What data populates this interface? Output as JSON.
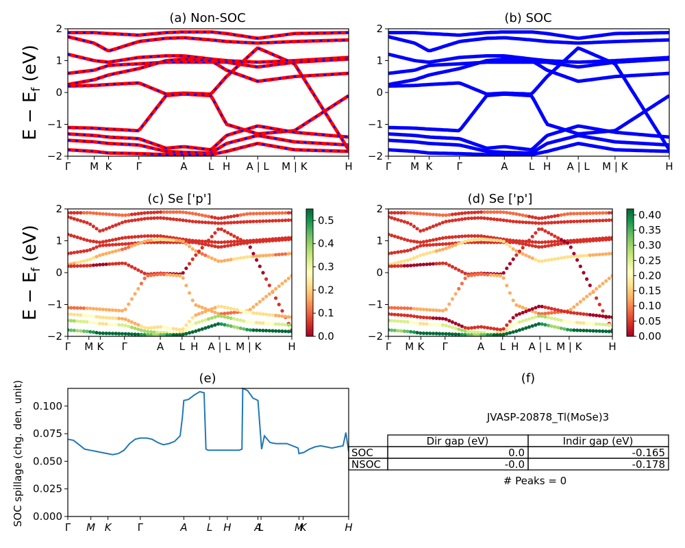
{
  "titles": {
    "a": "(a) Non-SOC",
    "b": "(b) SOC",
    "c": "(c)  Se ['p']",
    "d": "(d) Se ['p']",
    "e": "(e)",
    "f": "(f)"
  },
  "ylabel_energy": "E − E",
  "ylabel_energy_sub": "f",
  "ylabel_energy_unit": " (eV)",
  "colors": {
    "nonsoc_red": "#ff0000",
    "nonsoc_blue": "#0000ff",
    "soc_blue": "#0000ff",
    "spillage_line": "#1f77b4"
  },
  "chart_data": [
    {
      "id": "a",
      "type": "line",
      "title": "(a) Non-SOC",
      "ylabel": "E − Ef (eV)",
      "ylim": [
        -2,
        2
      ],
      "yticks": [
        "2",
        "1",
        "0",
        "−1",
        "−2"
      ],
      "kpath": [
        "Γ",
        "M",
        "K",
        "Γ",
        "A",
        "L",
        "H",
        "A | L",
        "M | K",
        "H"
      ],
      "kpos": [
        0,
        0.094,
        0.145,
        0.253,
        0.413,
        0.51,
        0.565,
        0.676,
        0.807,
        1.0
      ],
      "bands": [
        [
          1.88,
          1.88,
          1.85,
          1.8,
          1.88,
          1.9,
          1.9,
          1.85,
          1.7,
          1.85,
          1.88
        ],
        [
          1.75,
          1.55,
          1.3,
          1.6,
          1.7,
          1.72,
          1.65,
          1.6,
          1.55,
          1.6,
          1.65
        ],
        [
          1.2,
          1.0,
          0.95,
          1.1,
          1.15,
          1.15,
          1.05,
          1.0,
          0.95,
          1.0,
          1.1
        ],
        [
          0.6,
          0.7,
          0.85,
          0.9,
          0.95,
          0.95,
          0.95,
          0.95,
          0.8,
          0.95,
          1.05
        ],
        [
          0.25,
          0.4,
          0.55,
          0.75,
          1.0,
          1.05,
          1.0,
          0.7,
          0.35,
          0.5,
          0.6
        ],
        [
          0.2,
          0.22,
          0.25,
          0.3,
          -0.05,
          -0.02,
          -0.05,
          0.5,
          1.4,
          0.9,
          -1.8
        ],
        [
          -1.1,
          -1.12,
          -1.15,
          -1.2,
          -0.1,
          -0.05,
          -0.1,
          -1.0,
          -1.3,
          -1.2,
          -0.1
        ],
        [
          -1.3,
          -1.35,
          -1.4,
          -1.45,
          -1.75,
          -1.7,
          -1.8,
          -1.35,
          -1.05,
          -1.25,
          -1.4
        ],
        [
          -1.5,
          -1.55,
          -1.6,
          -1.65,
          -1.85,
          -1.88,
          -1.9,
          -1.6,
          -1.35,
          -1.55,
          -1.65
        ],
        [
          -1.8,
          -1.85,
          -1.9,
          -1.92,
          -1.95,
          -1.95,
          -1.95,
          -1.85,
          -1.6,
          -1.8,
          -1.85
        ]
      ]
    },
    {
      "id": "b",
      "type": "line",
      "title": "(b) SOC",
      "ylim": [
        -2,
        2
      ],
      "yticks": [
        "2",
        "1",
        "0",
        "−1",
        "−2"
      ],
      "kpath": [
        "Γ",
        "M",
        "K",
        "Γ",
        "A",
        "L",
        "H",
        "A | L",
        "M | K",
        "H"
      ],
      "kpos": [
        0,
        0.094,
        0.145,
        0.253,
        0.413,
        0.51,
        0.565,
        0.676,
        0.807,
        1.0
      ],
      "bands": [
        [
          1.88,
          1.88,
          1.85,
          1.8,
          1.88,
          1.9,
          1.9,
          1.85,
          1.7,
          1.85,
          1.88
        ],
        [
          1.75,
          1.55,
          1.3,
          1.6,
          1.7,
          1.72,
          1.65,
          1.6,
          1.55,
          1.6,
          1.65
        ],
        [
          1.2,
          1.0,
          0.95,
          1.1,
          1.15,
          1.15,
          1.05,
          1.0,
          0.95,
          1.0,
          1.1
        ],
        [
          0.6,
          0.7,
          0.85,
          0.9,
          0.95,
          0.95,
          0.95,
          0.95,
          0.8,
          0.95,
          1.05
        ],
        [
          0.25,
          0.4,
          0.55,
          0.75,
          1.0,
          1.05,
          1.0,
          0.7,
          0.35,
          0.5,
          0.6
        ],
        [
          0.2,
          0.22,
          0.25,
          0.3,
          -0.05,
          -0.02,
          -0.05,
          0.5,
          1.4,
          0.9,
          -1.8
        ],
        [
          -1.1,
          -1.12,
          -1.15,
          -1.2,
          -0.1,
          -0.05,
          -0.1,
          -1.0,
          -1.3,
          -1.2,
          -0.1
        ],
        [
          -1.3,
          -1.35,
          -1.4,
          -1.45,
          -1.75,
          -1.7,
          -1.8,
          -1.35,
          -1.05,
          -1.25,
          -1.4
        ],
        [
          -1.5,
          -1.55,
          -1.6,
          -1.65,
          -1.85,
          -1.88,
          -1.9,
          -1.6,
          -1.35,
          -1.55,
          -1.65
        ],
        [
          -1.8,
          -1.85,
          -1.9,
          -1.92,
          -1.95,
          -1.95,
          -1.95,
          -1.85,
          -1.6,
          -1.8,
          -1.85
        ]
      ]
    },
    {
      "id": "c",
      "type": "scatter",
      "title": "(c)  Se ['p']",
      "ylim": [
        -2,
        2
      ],
      "yticks": [
        "2",
        "1",
        "0",
        "−1",
        "−2"
      ],
      "kpath": [
        "Γ",
        "M",
        "K",
        "Γ",
        "A",
        "L",
        "H",
        "A | L",
        "M | K",
        "H"
      ],
      "kpos": [
        0,
        0.094,
        0.145,
        0.253,
        0.413,
        0.51,
        0.565,
        0.676,
        0.807,
        1.0
      ],
      "colorbar_range": [
        0.0,
        0.55
      ],
      "colorbar_ticks": [
        "0.5",
        "0.4",
        "0.3",
        "0.2",
        "0.1",
        "0.0"
      ],
      "bands": [
        [
          1.88,
          1.88,
          1.85,
          1.8,
          1.88,
          1.9,
          1.9,
          1.85,
          1.7,
          1.85,
          1.88
        ],
        [
          1.75,
          1.55,
          1.3,
          1.6,
          1.7,
          1.72,
          1.65,
          1.6,
          1.55,
          1.6,
          1.65
        ],
        [
          1.2,
          1.0,
          0.95,
          1.1,
          1.15,
          1.15,
          1.05,
          1.0,
          0.95,
          1.0,
          1.1
        ],
        [
          0.6,
          0.7,
          0.85,
          0.9,
          0.95,
          0.95,
          0.95,
          0.95,
          0.8,
          0.95,
          1.05
        ],
        [
          0.25,
          0.4,
          0.55,
          0.75,
          1.0,
          1.05,
          1.0,
          0.7,
          0.35,
          0.5,
          0.6
        ],
        [
          0.2,
          0.22,
          0.25,
          0.3,
          -0.05,
          -0.02,
          -0.05,
          0.5,
          1.4,
          0.9,
          -1.8
        ],
        [
          -1.1,
          -1.12,
          -1.15,
          -1.2,
          -0.1,
          -0.05,
          -0.1,
          -1.0,
          -1.3,
          -1.2,
          -0.1
        ],
        [
          -1.3,
          -1.35,
          -1.4,
          -1.45,
          -1.75,
          -1.7,
          -1.8,
          -1.35,
          -1.05,
          -1.25,
          -1.4
        ],
        [
          -1.5,
          -1.55,
          -1.6,
          -1.65,
          -1.85,
          -1.88,
          -1.9,
          -1.6,
          -1.35,
          -1.55,
          -1.65
        ],
        [
          -1.8,
          -1.85,
          -1.9,
          -1.92,
          -1.95,
          -1.95,
          -1.95,
          -1.85,
          -1.6,
          -1.8,
          -1.85
        ]
      ],
      "band_weights": [
        0.08,
        0.06,
        0.05,
        0.04,
        0.16,
        0.03,
        0.14,
        0.2,
        0.3,
        0.5
      ]
    },
    {
      "id": "d",
      "type": "scatter",
      "title": "(d) Se ['p']",
      "ylim": [
        -2,
        2
      ],
      "yticks": [
        "2",
        "1",
        "0",
        "−1",
        "−2"
      ],
      "kpath": [
        "Γ",
        "M",
        "K",
        "Γ",
        "A",
        "L",
        "H",
        "A | L",
        "M | K",
        "H"
      ],
      "kpos": [
        0,
        0.094,
        0.145,
        0.253,
        0.413,
        0.51,
        0.565,
        0.676,
        0.807,
        1.0
      ],
      "colorbar_range": [
        0.0,
        0.42
      ],
      "colorbar_ticks": [
        "0.40",
        "0.35",
        "0.30",
        "0.25",
        "0.20",
        "0.15",
        "0.10",
        "0.05",
        "0.00"
      ],
      "bands": [
        [
          1.88,
          1.88,
          1.85,
          1.8,
          1.88,
          1.9,
          1.9,
          1.85,
          1.7,
          1.85,
          1.88
        ],
        [
          1.75,
          1.55,
          1.3,
          1.6,
          1.7,
          1.72,
          1.65,
          1.6,
          1.55,
          1.6,
          1.65
        ],
        [
          1.2,
          1.0,
          0.95,
          1.1,
          1.15,
          1.15,
          1.05,
          1.0,
          0.95,
          1.0,
          1.1
        ],
        [
          0.6,
          0.7,
          0.85,
          0.9,
          0.95,
          0.95,
          0.95,
          0.95,
          0.8,
          0.95,
          1.05
        ],
        [
          0.25,
          0.4,
          0.55,
          0.75,
          1.0,
          1.05,
          1.0,
          0.7,
          0.35,
          0.5,
          0.6
        ],
        [
          0.2,
          0.22,
          0.25,
          0.3,
          -0.05,
          -0.02,
          -0.05,
          0.5,
          1.4,
          0.9,
          -1.8
        ],
        [
          -1.1,
          -1.12,
          -1.15,
          -1.2,
          -0.1,
          -0.05,
          -0.1,
          -1.0,
          -1.3,
          -1.2,
          -0.1
        ],
        [
          -1.3,
          -1.35,
          -1.4,
          -1.45,
          -1.75,
          -1.7,
          -1.8,
          -1.35,
          -1.05,
          -1.25,
          -1.4
        ],
        [
          -1.5,
          -1.55,
          -1.6,
          -1.65,
          -1.85,
          -1.88,
          -1.9,
          -1.6,
          -1.35,
          -1.55,
          -1.65
        ],
        [
          -1.8,
          -1.85,
          -1.9,
          -1.92,
          -1.95,
          -1.95,
          -1.95,
          -1.85,
          -1.6,
          -1.8,
          -1.85
        ]
      ],
      "band_weights": [
        0.06,
        0.05,
        0.04,
        0.03,
        0.15,
        0.02,
        0.1,
        0.02,
        0.22,
        0.38
      ]
    },
    {
      "id": "e",
      "type": "line",
      "title": "(e)",
      "ylabel": "SOC spillage (chg. den. unit)",
      "ylim": [
        0,
        0.116
      ],
      "yticks": [
        0.0,
        0.025,
        0.05,
        0.075,
        0.1
      ],
      "ytick_labels": [
        "0.000",
        "0.025",
        "0.050",
        "0.075",
        "0.100"
      ],
      "xtick_labels": [
        "Γ",
        "M",
        "K",
        "Γ",
        "A",
        "L",
        "H",
        "A",
        "L",
        "M",
        "K",
        "H"
      ],
      "xtick_pos": [
        0,
        0.082,
        0.143,
        0.258,
        0.413,
        0.505,
        0.568,
        0.677,
        0.688,
        0.823,
        0.838,
        1.0
      ],
      "x": [
        0.0,
        0.02,
        0.04,
        0.06,
        0.08,
        0.1,
        0.12,
        0.14,
        0.16,
        0.18,
        0.2,
        0.22,
        0.24,
        0.258,
        0.28,
        0.3,
        0.32,
        0.34,
        0.36,
        0.38,
        0.4,
        0.408,
        0.413,
        0.43,
        0.45,
        0.47,
        0.485,
        0.492,
        0.5,
        0.52,
        0.54,
        0.56,
        0.58,
        0.6,
        0.61,
        0.62,
        0.623,
        0.64,
        0.66,
        0.67,
        0.677,
        0.69,
        0.7,
        0.72,
        0.74,
        0.76,
        0.78,
        0.8,
        0.82,
        0.823,
        0.84,
        0.86,
        0.88,
        0.9,
        0.92,
        0.94,
        0.96,
        0.98,
        0.99,
        1.0
      ],
      "y": [
        0.07,
        0.069,
        0.065,
        0.061,
        0.06,
        0.059,
        0.058,
        0.057,
        0.056,
        0.057,
        0.06,
        0.066,
        0.07,
        0.071,
        0.071,
        0.07,
        0.067,
        0.065,
        0.066,
        0.068,
        0.073,
        0.09,
        0.105,
        0.106,
        0.11,
        0.113,
        0.112,
        0.061,
        0.06,
        0.06,
        0.06,
        0.06,
        0.06,
        0.06,
        0.06,
        0.061,
        0.116,
        0.114,
        0.107,
        0.106,
        0.105,
        0.061,
        0.073,
        0.067,
        0.066,
        0.066,
        0.066,
        0.064,
        0.062,
        0.057,
        0.058,
        0.061,
        0.063,
        0.064,
        0.063,
        0.062,
        0.063,
        0.064,
        0.076,
        0.059
      ]
    }
  ],
  "table": {
    "caption": "JVASP-20878_Tl(MoSe)3",
    "headers": [
      "",
      "Dir gap (eV)",
      "Indir gap (eV)"
    ],
    "rows": [
      [
        "SOC",
        "0.0",
        "-0.165"
      ],
      [
        "NSOC",
        "-0.0",
        "-0.178"
      ]
    ],
    "footer": "# Peaks = 0"
  }
}
